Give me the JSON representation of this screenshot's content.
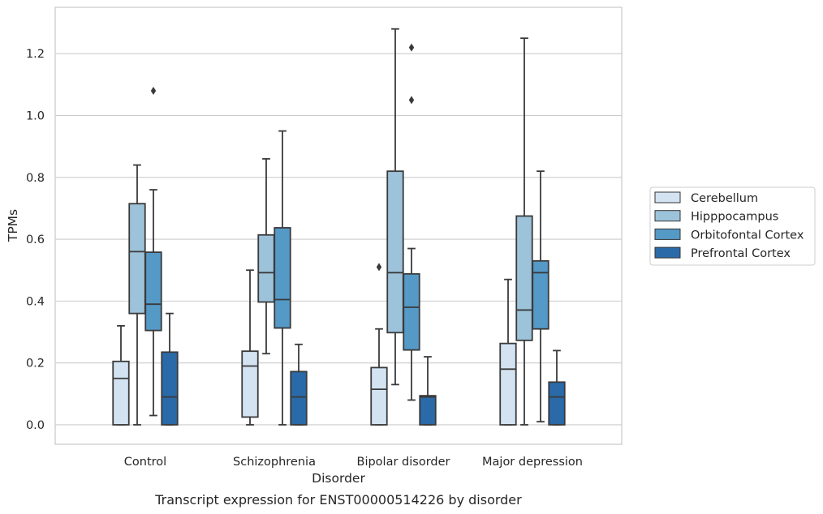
{
  "chart_data": {
    "type": "box",
    "caption": "Transcript expression for ENST00000514226 by disorder",
    "xlabel": "Disorder",
    "ylabel": "TPMs",
    "ylim": [
      -0.063,
      1.35
    ],
    "yticks": [
      0.0,
      0.2,
      0.4,
      0.6,
      0.8,
      1.0,
      1.2
    ],
    "ytick_labels": [
      "0.0",
      "0.2",
      "0.4",
      "0.6",
      "0.8",
      "1.0",
      "1.2"
    ],
    "grid": "horizontal",
    "legend_position": "right",
    "categories": [
      "Control",
      "Schizophrenia",
      "Bipolar disorder",
      "Major depression"
    ],
    "series": [
      {
        "name": "Cerebellum",
        "color": "#d3e3f2",
        "boxes": [
          {
            "whislo": 0.0,
            "q1": 0.0,
            "med": 0.15,
            "q3": 0.205,
            "whishi": 0.32,
            "fliers": []
          },
          {
            "whislo": 0.0,
            "q1": 0.025,
            "med": 0.19,
            "q3": 0.238,
            "whishi": 0.5,
            "fliers": []
          },
          {
            "whislo": 0.0,
            "q1": 0.0,
            "med": 0.115,
            "q3": 0.185,
            "whishi": 0.31,
            "fliers": [
              0.51
            ]
          },
          {
            "whislo": 0.0,
            "q1": 0.0,
            "med": 0.18,
            "q3": 0.263,
            "whishi": 0.47,
            "fliers": []
          }
        ]
      },
      {
        "name": "Hipppocampus",
        "color": "#9dc3db",
        "boxes": [
          {
            "whislo": 0.0,
            "q1": 0.36,
            "med": 0.56,
            "q3": 0.715,
            "whishi": 0.84,
            "fliers": []
          },
          {
            "whislo": 0.23,
            "q1": 0.397,
            "med": 0.492,
            "q3": 0.614,
            "whishi": 0.86,
            "fliers": []
          },
          {
            "whislo": 0.13,
            "q1": 0.298,
            "med": 0.492,
            "q3": 0.82,
            "whishi": 1.28,
            "fliers": []
          },
          {
            "whislo": 0.0,
            "q1": 0.273,
            "med": 0.371,
            "q3": 0.675,
            "whishi": 1.25,
            "fliers": []
          }
        ]
      },
      {
        "name": "Orbitofontal Cortex",
        "color": "#5599c7",
        "boxes": [
          {
            "whislo": 0.03,
            "q1": 0.305,
            "med": 0.39,
            "q3": 0.558,
            "whishi": 0.76,
            "fliers": [
              1.08
            ]
          },
          {
            "whislo": 0.0,
            "q1": 0.313,
            "med": 0.405,
            "q3": 0.637,
            "whishi": 0.95,
            "fliers": []
          },
          {
            "whislo": 0.08,
            "q1": 0.242,
            "med": 0.38,
            "q3": 0.488,
            "whishi": 0.57,
            "fliers": [
              1.05,
              1.22
            ]
          },
          {
            "whislo": 0.01,
            "q1": 0.31,
            "med": 0.492,
            "q3": 0.53,
            "whishi": 0.82,
            "fliers": []
          }
        ]
      },
      {
        "name": "Prefrontal Cortex",
        "color": "#2a6aa8",
        "boxes": [
          {
            "whislo": 0.0,
            "q1": 0.0,
            "med": 0.09,
            "q3": 0.235,
            "whishi": 0.36,
            "fliers": []
          },
          {
            "whislo": 0.0,
            "q1": 0.0,
            "med": 0.09,
            "q3": 0.172,
            "whishi": 0.26,
            "fliers": []
          },
          {
            "whislo": 0.0,
            "q1": 0.0,
            "med": 0.09,
            "q3": 0.094,
            "whishi": 0.22,
            "fliers": []
          },
          {
            "whislo": 0.0,
            "q1": 0.0,
            "med": 0.09,
            "q3": 0.138,
            "whishi": 0.24,
            "fliers": []
          }
        ]
      }
    ]
  }
}
